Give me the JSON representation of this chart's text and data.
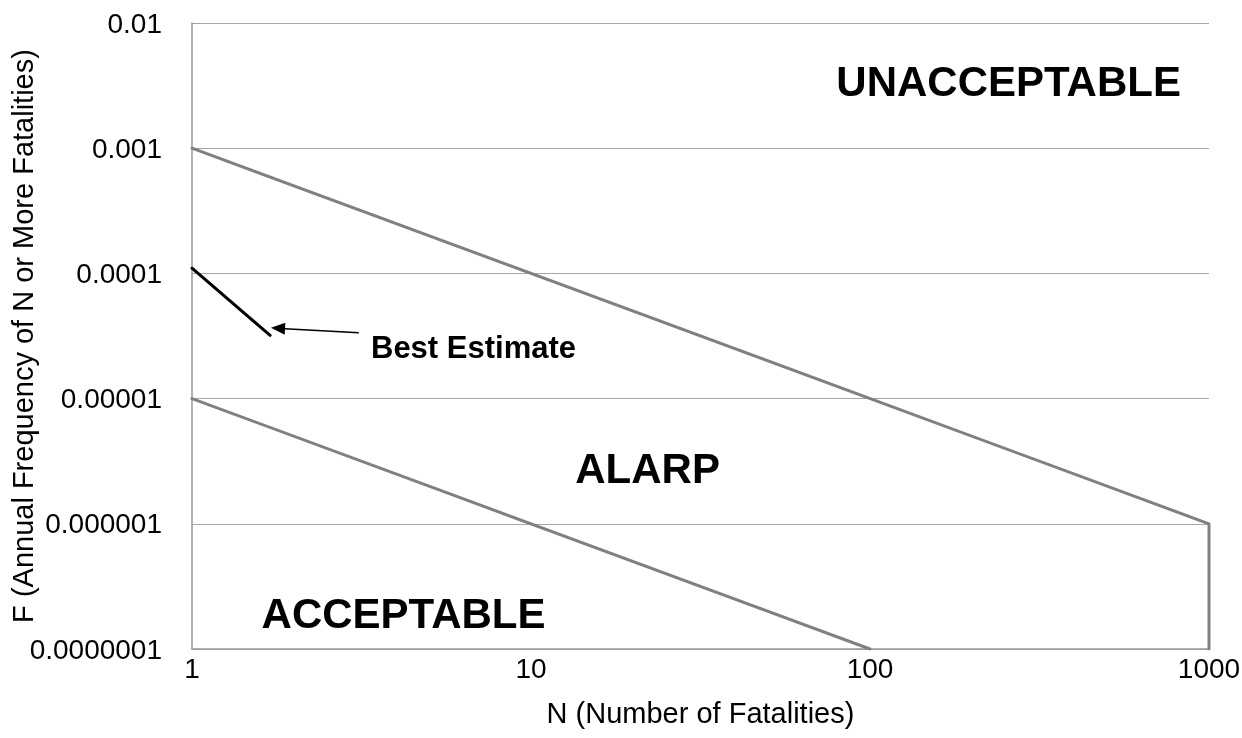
{
  "chart_data": {
    "type": "line",
    "xlabel": "N (Number of Fatalities)",
    "ylabel": "F (Annual Frequency of N or More Fatalities)",
    "series": [
      {
        "color": "#808080",
        "x": [
          1,
          1000,
          1000
        ],
        "values": [
          0.001,
          1e-06,
          1e-07
        ]
      },
      {
        "color": "#808080",
        "x": [
          1,
          100
        ],
        "values": [
          1e-05,
          1e-07
        ]
      },
      {
        "color": "#000000",
        "x": [
          1,
          1.7
        ],
        "values": [
          0.00011,
          3.2e-05
        ]
      }
    ],
    "xlim": [
      1,
      1000
    ],
    "ylim": [
      1e-07,
      0.01
    ],
    "xticks": [
      1,
      10,
      100,
      1000
    ],
    "yticks": [
      {
        "value": 1e-07,
        "label": "0.0000001"
      },
      {
        "value": 1e-06,
        "label": "0.000001"
      },
      {
        "value": 1e-05,
        "label": "0.00001"
      },
      0.0001,
      0.001,
      0.01
    ],
    "log": "xy",
    "grid": "y",
    "marker": "none",
    "annotations": [
      "UNACCEPTABLE",
      "ALARP",
      "ACCEPTABLE",
      "Best Estimate"
    ]
  }
}
